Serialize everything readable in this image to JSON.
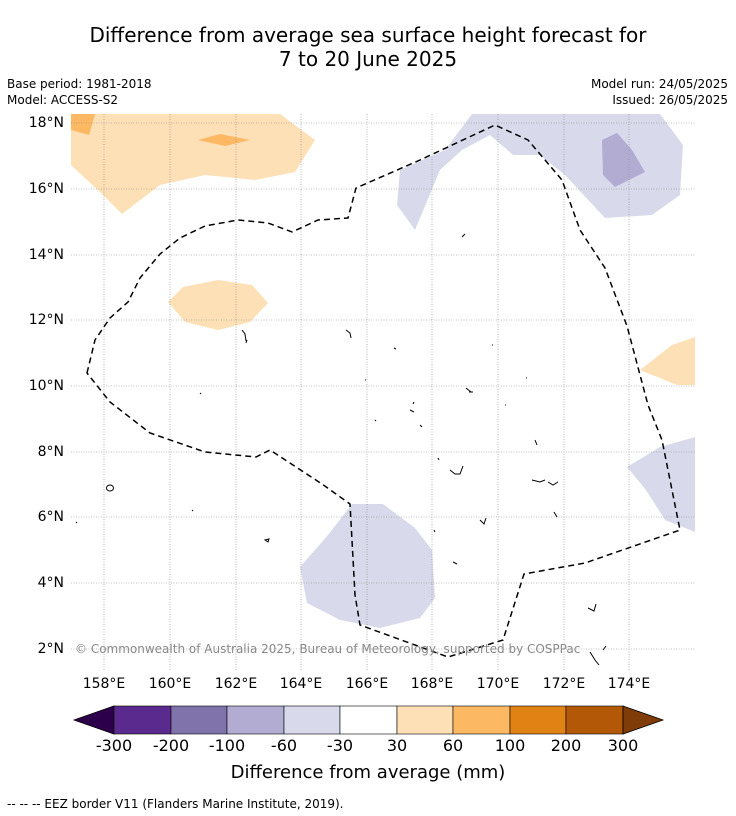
{
  "title_line1": "Difference from average sea surface height forecast for",
  "title_line2": "7 to 20 June 2025",
  "meta": {
    "base_period": "Base period: 1981-2018",
    "model": "Model: ACCESS-S2",
    "model_run": "Model run: 24/05/2025",
    "issued": "Issued: 26/05/2025"
  },
  "axes": {
    "lat_labels": [
      "18°N",
      "16°N",
      "14°N",
      "12°N",
      "10°N",
      "8°N",
      "6°N",
      "4°N",
      "2°N"
    ],
    "lon_labels": [
      "158°E",
      "160°E",
      "162°E",
      "164°E",
      "166°E",
      "168°E",
      "170°E",
      "172°E",
      "174°E"
    ]
  },
  "copyright": "© Commonwealth of Australia 2025, Bureau of Meteorology, supported by COSPPac",
  "colorbar": {
    "ticks": [
      "-300",
      "-200",
      "-100",
      "-60",
      "-30",
      "30",
      "60",
      "100",
      "200",
      "300"
    ],
    "colors": [
      "#2d004b",
      "#5b2a8f",
      "#8073ac",
      "#b2abd2",
      "#d8daeb",
      "#ffffff",
      "#fee0b6",
      "#fdb863",
      "#e08214",
      "#b35806",
      "#7f3b08"
    ],
    "label": "Difference from average (mm)"
  },
  "legend": "--  --  -- EEZ border V11 (Flanders Marine Institute, 2019)."
}
